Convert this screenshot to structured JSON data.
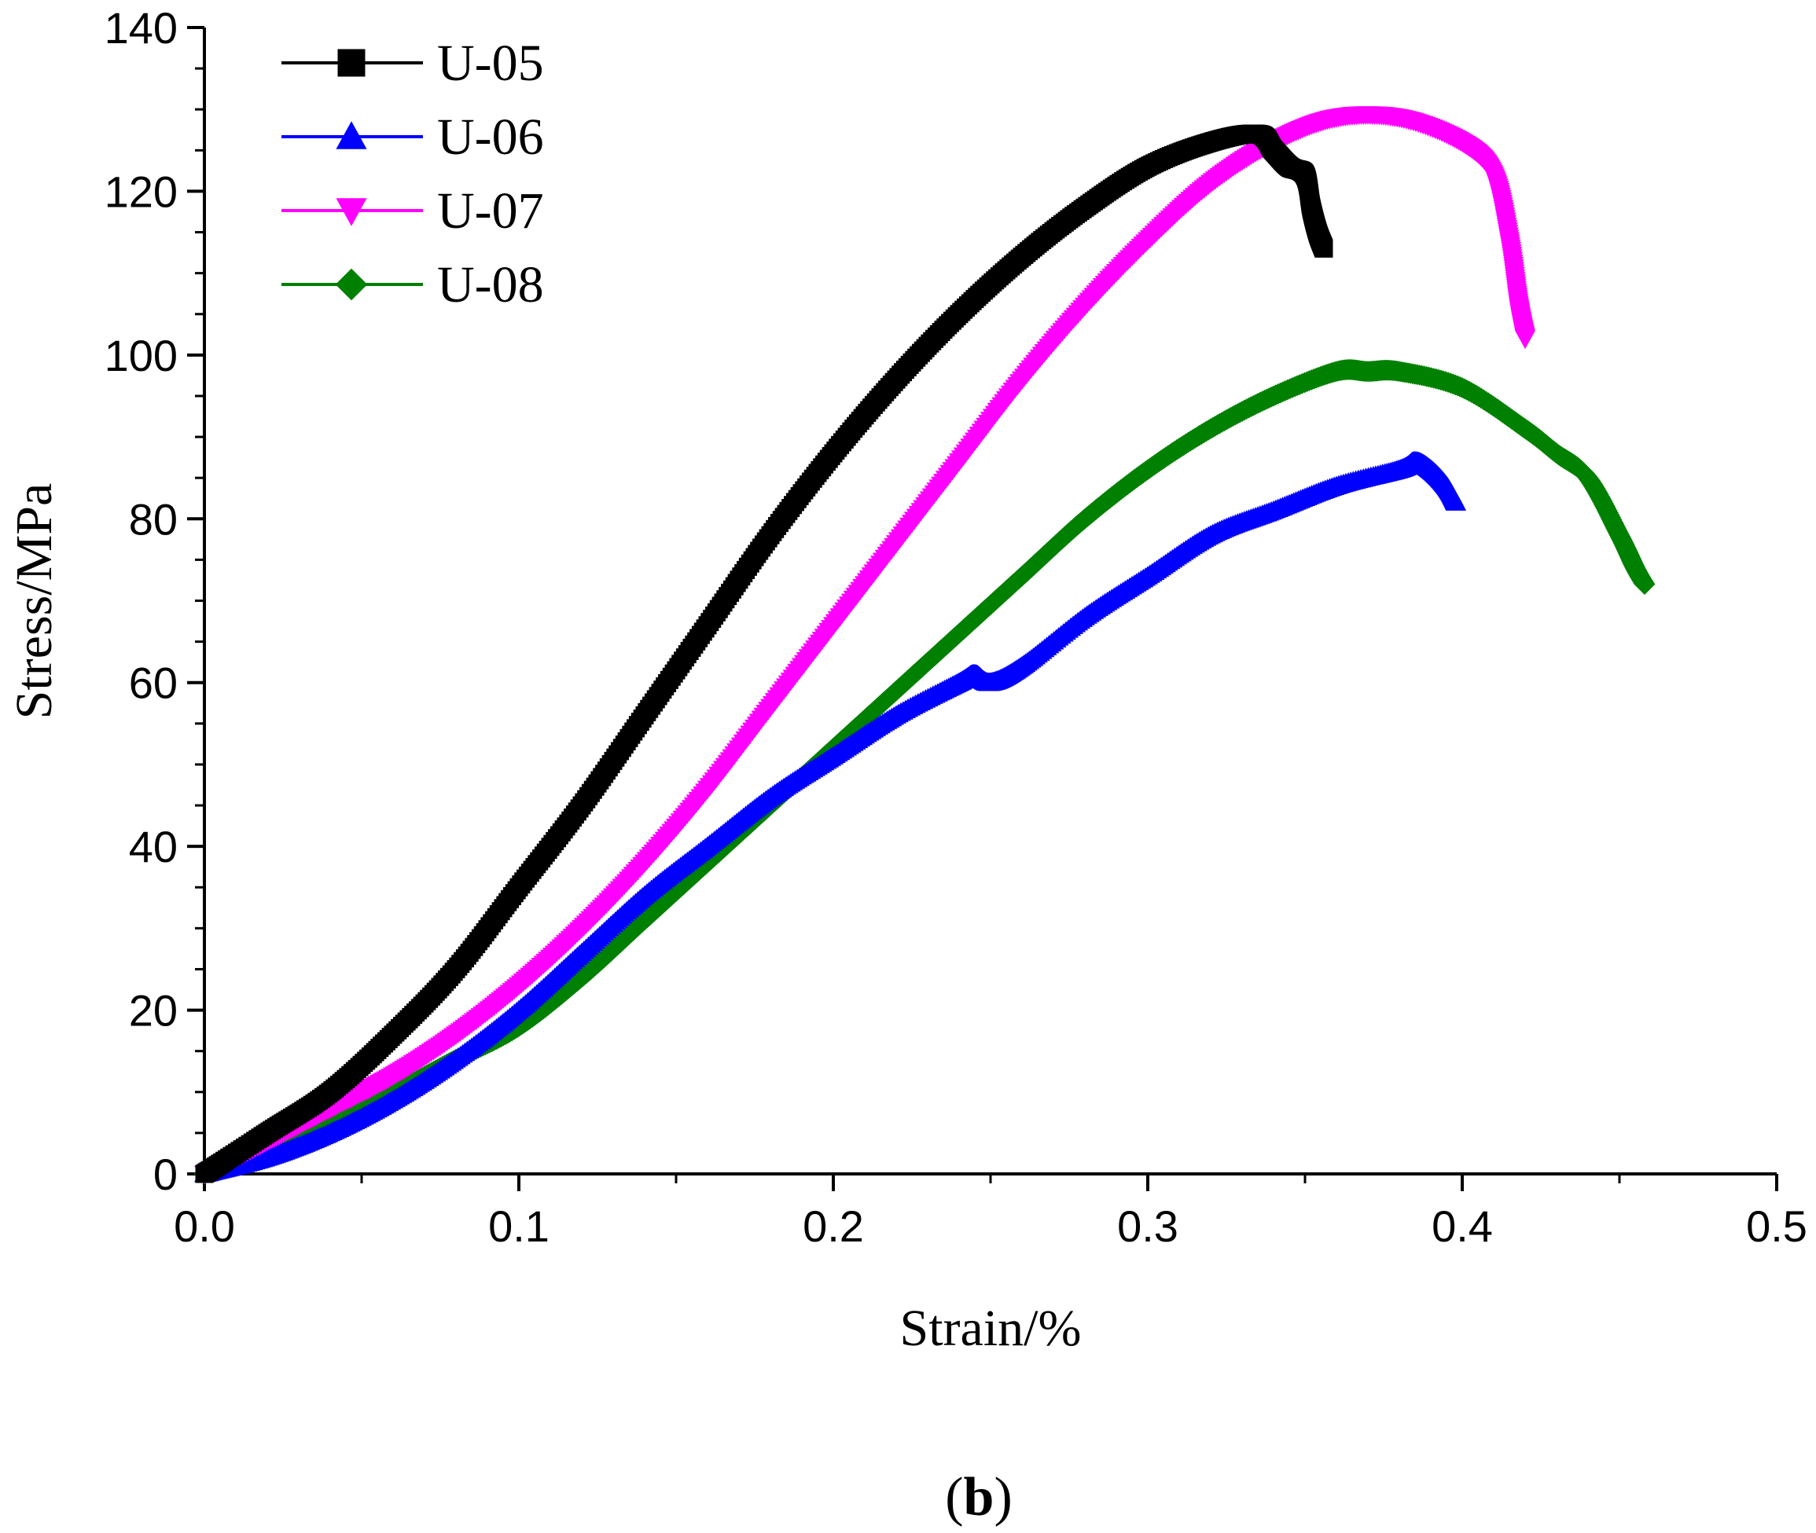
{
  "chart_data": {
    "type": "line",
    "title": "",
    "xlabel": "Strain/%",
    "ylabel": "Stress/MPa",
    "panel_label_open": "(",
    "panel_label_letter": "b",
    "panel_label_close": ")",
    "xlim": [
      0,
      0.5
    ],
    "ylim": [
      0,
      140
    ],
    "xticks": [
      0.0,
      0.1,
      0.2,
      0.3,
      0.4,
      0.5
    ],
    "xtick_labels": [
      "0.0",
      "0.1",
      "0.2",
      "0.3",
      "0.4",
      "0.5"
    ],
    "yticks": [
      0,
      20,
      40,
      60,
      80,
      100,
      120,
      140
    ],
    "ytick_labels": [
      "0",
      "20",
      "40",
      "60",
      "80",
      "100",
      "120",
      "140"
    ],
    "legend_position": "top-left",
    "series": [
      {
        "name": "U-05",
        "color": "#000000",
        "marker": "square",
        "x": [
          0.0,
          0.02,
          0.04,
          0.06,
          0.08,
          0.1,
          0.12,
          0.14,
          0.16,
          0.18,
          0.2,
          0.22,
          0.24,
          0.26,
          0.28,
          0.3,
          0.32,
          0.335,
          0.34,
          0.345,
          0.35,
          0.352,
          0.354,
          0.356
        ],
        "y": [
          0,
          5,
          10,
          17,
          25,
          35,
          45,
          56,
          67,
          78,
          88,
          97,
          105,
          112,
          118,
          123,
          126,
          127,
          125,
          123,
          122,
          118,
          115,
          113
        ]
      },
      {
        "name": "U-06",
        "color": "#0000ff",
        "marker": "triangle-up",
        "x": [
          0.0,
          0.02,
          0.04,
          0.06,
          0.08,
          0.1,
          0.12,
          0.14,
          0.16,
          0.18,
          0.2,
          0.22,
          0.24,
          0.245,
          0.25,
          0.26,
          0.28,
          0.3,
          0.32,
          0.34,
          0.36,
          0.38,
          0.385,
          0.39,
          0.395,
          0.398
        ],
        "y": [
          0,
          2,
          5,
          9,
          14,
          20,
          27,
          34,
          40,
          46,
          51,
          56,
          60,
          61,
          60,
          62,
          68,
          73,
          78,
          81,
          84,
          86,
          87,
          86,
          84,
          82
        ]
      },
      {
        "name": "U-07",
        "color": "#ff00ff",
        "marker": "triangle-down",
        "x": [
          0.0,
          0.02,
          0.04,
          0.06,
          0.08,
          0.1,
          0.12,
          0.14,
          0.16,
          0.18,
          0.2,
          0.22,
          0.24,
          0.26,
          0.28,
          0.3,
          0.32,
          0.34,
          0.36,
          0.38,
          0.4,
          0.41,
          0.415,
          0.418,
          0.42
        ],
        "y": [
          0,
          4,
          8,
          12,
          17,
          23,
          30,
          38,
          47,
          57,
          67,
          77,
          87,
          97,
          106,
          114,
          121,
          126,
          129,
          129,
          126,
          122,
          114,
          106,
          102
        ]
      },
      {
        "name": "U-08",
        "color": "#008000",
        "marker": "diamond",
        "x": [
          0.0,
          0.02,
          0.04,
          0.06,
          0.08,
          0.1,
          0.12,
          0.14,
          0.16,
          0.18,
          0.2,
          0.22,
          0.24,
          0.26,
          0.28,
          0.3,
          0.32,
          0.34,
          0.36,
          0.37,
          0.38,
          0.4,
          0.42,
          0.43,
          0.44,
          0.45,
          0.455,
          0.458
        ],
        "y": [
          0,
          4,
          7,
          10,
          14,
          18,
          24,
          31,
          38,
          45,
          52,
          59,
          66,
          73,
          80,
          86,
          91,
          95,
          98,
          98,
          98,
          96,
          91,
          88,
          85,
          78,
          74,
          72
        ]
      }
    ]
  }
}
